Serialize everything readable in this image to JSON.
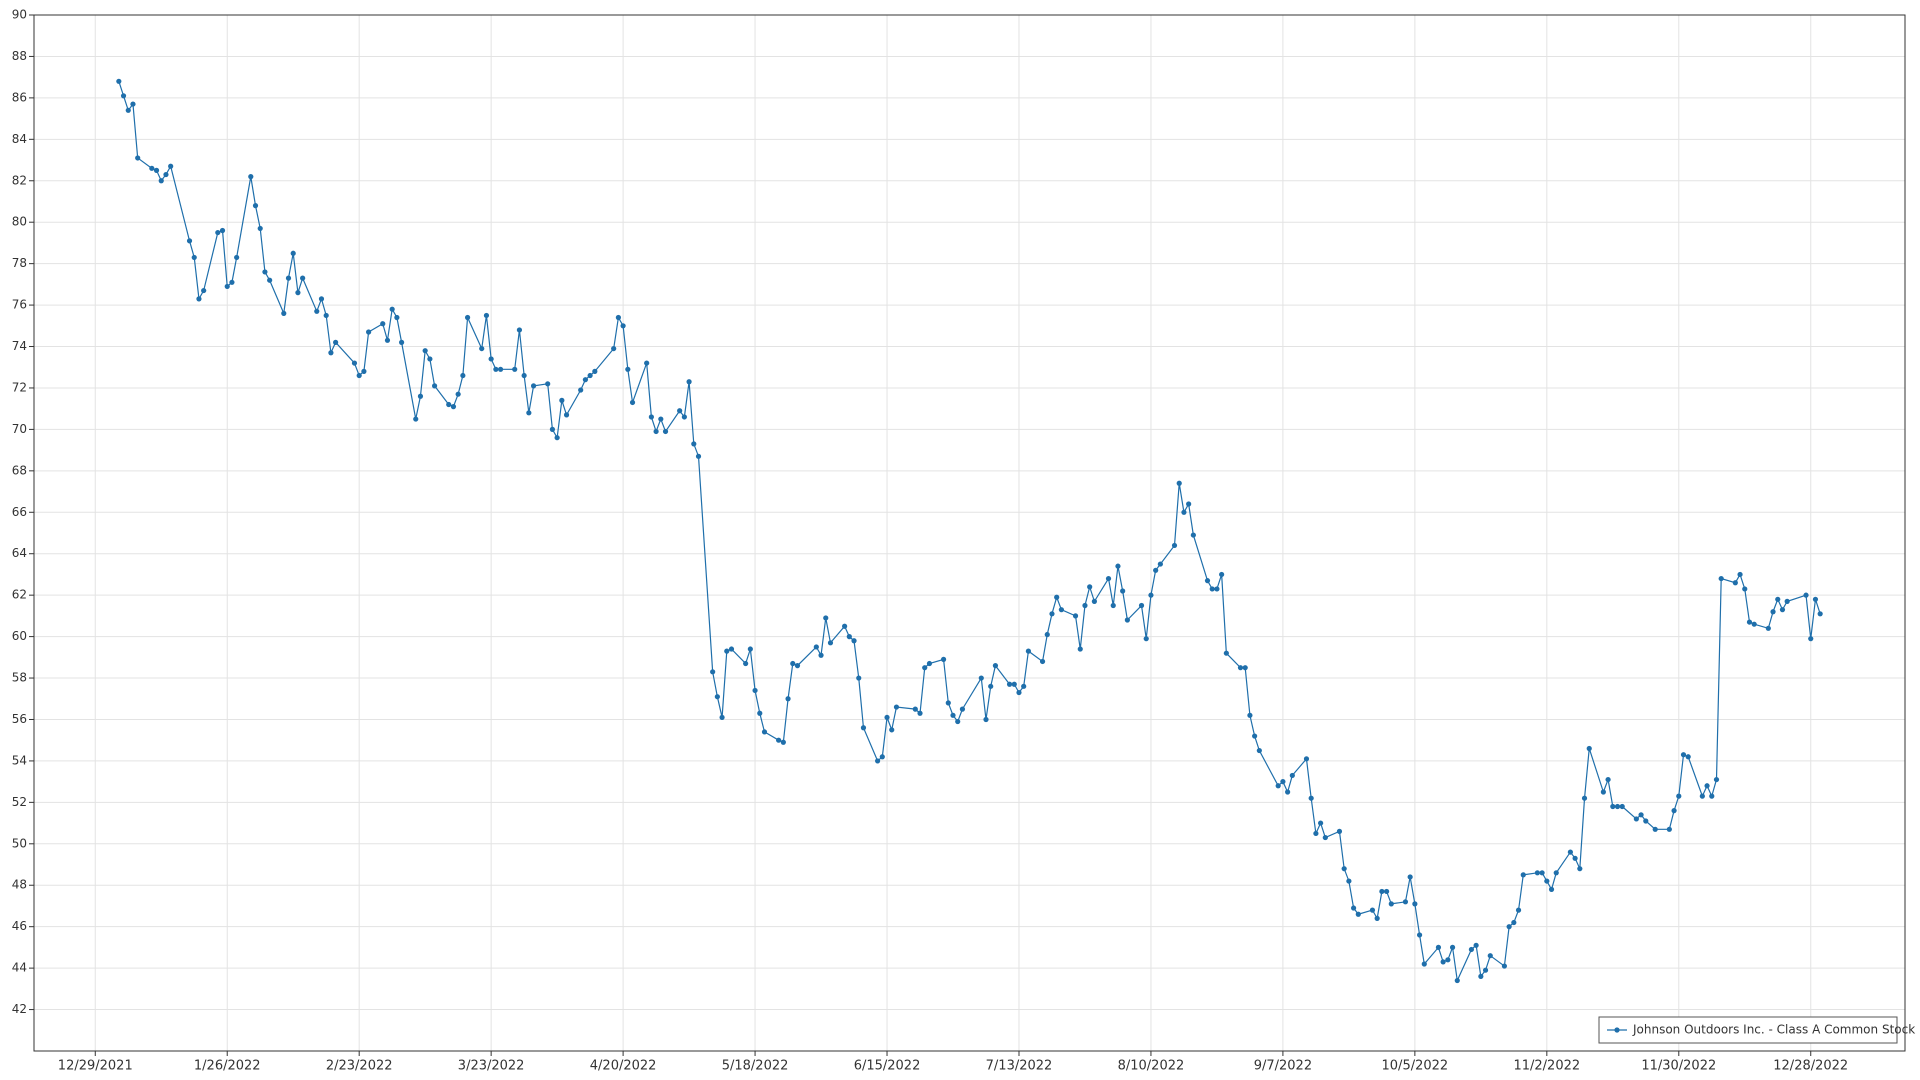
{
  "chart_data": {
    "type": "line",
    "x": [
      "1/3/2022",
      "1/4/2022",
      "1/5/2022",
      "1/6/2022",
      "1/7/2022",
      "1/10/2022",
      "1/11/2022",
      "1/12/2022",
      "1/13/2022",
      "1/14/2022",
      "1/18/2022",
      "1/19/2022",
      "1/20/2022",
      "1/21/2022",
      "1/24/2022",
      "1/25/2022",
      "1/26/2022",
      "1/27/2022",
      "1/28/2022",
      "1/31/2022",
      "2/1/2022",
      "2/2/2022",
      "2/3/2022",
      "2/4/2022",
      "2/7/2022",
      "2/8/2022",
      "2/9/2022",
      "2/10/2022",
      "2/11/2022",
      "2/14/2022",
      "2/15/2022",
      "2/16/2022",
      "2/17/2022",
      "2/18/2022",
      "2/22/2022",
      "2/23/2022",
      "2/24/2022",
      "2/25/2022",
      "2/28/2022",
      "3/1/2022",
      "3/2/2022",
      "3/3/2022",
      "3/4/2022",
      "3/7/2022",
      "3/8/2022",
      "3/9/2022",
      "3/10/2022",
      "3/11/2022",
      "3/14/2022",
      "3/15/2022",
      "3/16/2022",
      "3/17/2022",
      "3/18/2022",
      "3/21/2022",
      "3/22/2022",
      "3/23/2022",
      "3/24/2022",
      "3/25/2022",
      "3/28/2022",
      "3/29/2022",
      "3/30/2022",
      "3/31/2022",
      "4/1/2022",
      "4/4/2022",
      "4/5/2022",
      "4/6/2022",
      "4/7/2022",
      "4/8/2022",
      "4/11/2022",
      "4/12/2022",
      "4/13/2022",
      "4/14/2022",
      "4/18/2022",
      "4/19/2022",
      "4/20/2022",
      "4/21/2022",
      "4/22/2022",
      "4/25/2022",
      "4/26/2022",
      "4/27/2022",
      "4/28/2022",
      "4/29/2022",
      "5/2/2022",
      "5/3/2022",
      "5/4/2022",
      "5/5/2022",
      "5/6/2022",
      "5/9/2022",
      "5/10/2022",
      "5/11/2022",
      "5/12/2022",
      "5/13/2022",
      "5/16/2022",
      "5/17/2022",
      "5/18/2022",
      "5/19/2022",
      "5/20/2022",
      "5/23/2022",
      "5/24/2022",
      "5/25/2022",
      "5/26/2022",
      "5/27/2022",
      "5/31/2022",
      "6/1/2022",
      "6/2/2022",
      "6/3/2022",
      "6/6/2022",
      "6/7/2022",
      "6/8/2022",
      "6/9/2022",
      "6/10/2022",
      "6/13/2022",
      "6/14/2022",
      "6/15/2022",
      "6/16/2022",
      "6/17/2022",
      "6/21/2022",
      "6/22/2022",
      "6/23/2022",
      "6/24/2022",
      "6/27/2022",
      "6/28/2022",
      "6/29/2022",
      "6/30/2022",
      "7/1/2022",
      "7/5/2022",
      "7/6/2022",
      "7/7/2022",
      "7/8/2022",
      "7/11/2022",
      "7/12/2022",
      "7/13/2022",
      "7/14/2022",
      "7/15/2022",
      "7/18/2022",
      "7/19/2022",
      "7/20/2022",
      "7/21/2022",
      "7/22/2022",
      "7/25/2022",
      "7/26/2022",
      "7/27/2022",
      "7/28/2022",
      "7/29/2022",
      "8/1/2022",
      "8/2/2022",
      "8/3/2022",
      "8/4/2022",
      "8/5/2022",
      "8/8/2022",
      "8/9/2022",
      "8/10/2022",
      "8/11/2022",
      "8/12/2022",
      "8/15/2022",
      "8/16/2022",
      "8/17/2022",
      "8/18/2022",
      "8/19/2022",
      "8/22/2022",
      "8/23/2022",
      "8/24/2022",
      "8/25/2022",
      "8/26/2022",
      "8/29/2022",
      "8/30/2022",
      "8/31/2022",
      "9/1/2022",
      "9/2/2022",
      "9/6/2022",
      "9/7/2022",
      "9/8/2022",
      "9/9/2022",
      "9/12/2022",
      "9/13/2022",
      "9/14/2022",
      "9/15/2022",
      "9/16/2022",
      "9/19/2022",
      "9/20/2022",
      "9/21/2022",
      "9/22/2022",
      "9/23/2022",
      "9/26/2022",
      "9/27/2022",
      "9/28/2022",
      "9/29/2022",
      "9/30/2022",
      "10/3/2022",
      "10/4/2022",
      "10/5/2022",
      "10/6/2022",
      "10/7/2022",
      "10/10/2022",
      "10/11/2022",
      "10/12/2022",
      "10/13/2022",
      "10/14/2022",
      "10/17/2022",
      "10/18/2022",
      "10/19/2022",
      "10/20/2022",
      "10/21/2022",
      "10/24/2022",
      "10/25/2022",
      "10/26/2022",
      "10/27/2022",
      "10/28/2022",
      "10/31/2022",
      "11/1/2022",
      "11/2/2022",
      "11/3/2022",
      "11/4/2022",
      "11/7/2022",
      "11/8/2022",
      "11/9/2022",
      "11/10/2022",
      "11/11/2022",
      "11/14/2022",
      "11/15/2022",
      "11/16/2022",
      "11/17/2022",
      "11/18/2022",
      "11/21/2022",
      "11/22/2022",
      "11/23/2022",
      "11/25/2022",
      "11/28/2022",
      "11/29/2022",
      "11/30/2022",
      "12/1/2022",
      "12/2/2022",
      "12/5/2022",
      "12/6/2022",
      "12/7/2022",
      "12/8/2022",
      "12/9/2022",
      "12/12/2022",
      "12/13/2022",
      "12/14/2022",
      "12/15/2022",
      "12/16/2022",
      "12/19/2022",
      "12/20/2022",
      "12/21/2022",
      "12/22/2022",
      "12/23/2022",
      "12/27/2022",
      "12/28/2022",
      "12/29/2022",
      "12/30/2022"
    ],
    "series": [
      {
        "name": "Johnson Outdoors Inc. - Class A Common Stock",
        "color": "#1f6fab",
        "values": [
          86.8,
          86.1,
          85.4,
          85.7,
          83.1,
          82.6,
          82.5,
          82.0,
          82.3,
          82.7,
          79.1,
          78.3,
          76.3,
          76.7,
          79.5,
          79.6,
          76.9,
          77.1,
          78.3,
          82.2,
          80.8,
          79.7,
          77.6,
          77.2,
          75.6,
          77.3,
          78.5,
          76.6,
          77.3,
          75.7,
          76.3,
          75.5,
          73.7,
          74.2,
          73.2,
          72.6,
          72.8,
          74.7,
          75.1,
          74.3,
          75.8,
          75.4,
          74.2,
          70.5,
          71.6,
          73.8,
          73.4,
          72.1,
          71.2,
          71.1,
          71.7,
          72.6,
          75.4,
          73.9,
          75.5,
          73.4,
          72.9,
          72.9,
          72.9,
          74.8,
          72.6,
          70.8,
          72.1,
          72.2,
          70.0,
          69.6,
          71.4,
          70.7,
          71.9,
          72.4,
          72.6,
          72.8,
          73.9,
          75.4,
          75.0,
          72.9,
          71.3,
          73.2,
          70.6,
          69.9,
          70.5,
          69.9,
          70.9,
          70.6,
          72.3,
          69.3,
          68.7,
          58.3,
          57.1,
          56.1,
          59.3,
          59.4,
          58.7,
          59.4,
          57.4,
          56.3,
          55.4,
          55.0,
          54.9,
          57.0,
          58.7,
          58.6,
          59.5,
          59.1,
          60.9,
          59.7,
          60.5,
          60.0,
          59.8,
          58.0,
          55.6,
          54.0,
          54.2,
          56.1,
          55.5,
          56.6,
          56.5,
          56.3,
          58.5,
          58.7,
          58.9,
          56.8,
          56.2,
          55.9,
          56.5,
          58.0,
          56.0,
          57.6,
          58.6,
          57.7,
          57.7,
          57.3,
          57.6,
          59.3,
          58.8,
          60.1,
          61.1,
          61.9,
          61.3,
          61.0,
          59.4,
          61.5,
          62.4,
          61.7,
          62.8,
          61.5,
          63.4,
          62.2,
          60.8,
          61.5,
          59.9,
          62.0,
          63.2,
          63.5,
          64.4,
          67.4,
          66.0,
          66.4,
          64.9,
          62.7,
          62.3,
          62.3,
          63.0,
          59.2,
          58.5,
          58.5,
          56.2,
          55.2,
          54.5,
          52.8,
          53.0,
          52.5,
          53.3,
          54.1,
          52.2,
          50.5,
          51.0,
          50.3,
          50.6,
          48.8,
          48.2,
          46.9,
          46.6,
          46.8,
          46.4,
          47.7,
          47.7,
          47.1,
          47.2,
          48.4,
          47.1,
          45.6,
          44.2,
          45.0,
          44.3,
          44.4,
          45.0,
          43.4,
          44.9,
          45.1,
          43.6,
          43.9,
          44.6,
          44.1,
          46.0,
          46.2,
          46.8,
          48.5,
          48.6,
          48.6,
          48.2,
          47.8,
          48.6,
          49.6,
          49.3,
          48.8,
          52.2,
          54.6,
          52.5,
          53.1,
          51.8,
          51.8,
          51.8,
          51.2,
          51.4,
          51.1,
          50.7,
          50.7,
          51.6,
          52.3,
          54.3,
          54.2,
          52.3,
          52.8,
          52.3,
          53.1,
          62.8,
          62.6,
          63.0,
          62.3,
          60.7,
          60.6,
          60.4,
          61.2,
          61.8,
          61.3,
          61.7,
          62.0,
          59.9,
          61.8,
          61.1
        ]
      }
    ],
    "xlim": [
      "12/16/2021",
      "1/17/2023"
    ],
    "xticks": [
      "12/29/2021",
      "1/26/2022",
      "2/23/2022",
      "3/23/2022",
      "4/20/2022",
      "5/18/2022",
      "6/15/2022",
      "7/13/2022",
      "8/10/2022",
      "9/7/2022",
      "10/5/2022",
      "11/2/2022",
      "11/30/2022",
      "12/28/2022"
    ],
    "ylim": [
      40,
      90
    ],
    "yticks": [
      42,
      44,
      46,
      48,
      50,
      52,
      54,
      56,
      58,
      60,
      62,
      64,
      66,
      68,
      70,
      72,
      74,
      76,
      78,
      80,
      82,
      84,
      86,
      88,
      90
    ],
    "grid": true,
    "legend": "lower right"
  }
}
